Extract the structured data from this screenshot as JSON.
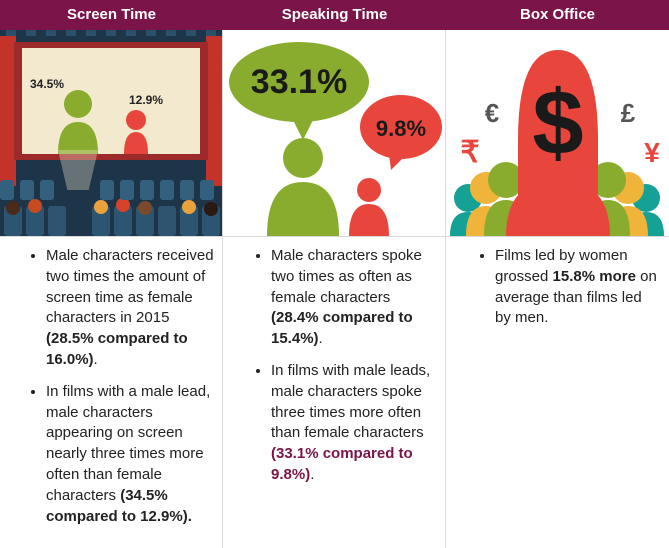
{
  "header": {
    "screen_time": "Screen Time",
    "speaking_time": "Speaking Time",
    "box_office": "Box Office"
  },
  "screen_panel": {
    "male_label": "34.5%",
    "female_label": "12.9%"
  },
  "speaking_panel": {
    "male_bubble": "33.1%",
    "female_bubble": "9.8%"
  },
  "box_panel": {
    "dollar_icon": "dollar-sign",
    "currency_glyphs": [
      "€",
      "£",
      "₹",
      "¥"
    ]
  },
  "colors": {
    "header_bg": "#7b1448",
    "accent": "#7b1448",
    "green": "#8aac2e",
    "red": "#e8463c",
    "navy": "#1c3247",
    "teal": "#16a196"
  },
  "screen_time": {
    "b1_text": "Male characters received two times the amount of screen time as female characters in 2015 ",
    "b1_bold": "(28.5% compared to 16.0%)",
    "b1_end": ".",
    "b2_text": "In films with a male lead, male characters appearing on screen nearly three times more often than female characters ",
    "b2_bold": "(34.5% compared to 12.9%)."
  },
  "speaking_time": {
    "b1_text": "Male characters spoke two times as often as female characters ",
    "b1_bold": "(28.4% compared to 15.4%)",
    "b1_end": ".",
    "b2_text": "In films with male leads, male characters spoke three times more often than female characters ",
    "b2_accent": "(33.1% compared to 9.8%)",
    "b2_end": "."
  },
  "box_office": {
    "b1_text": "Films led by women grossed ",
    "b1_bold": "15.8% more",
    "b1_end": " on average than films led by men."
  }
}
